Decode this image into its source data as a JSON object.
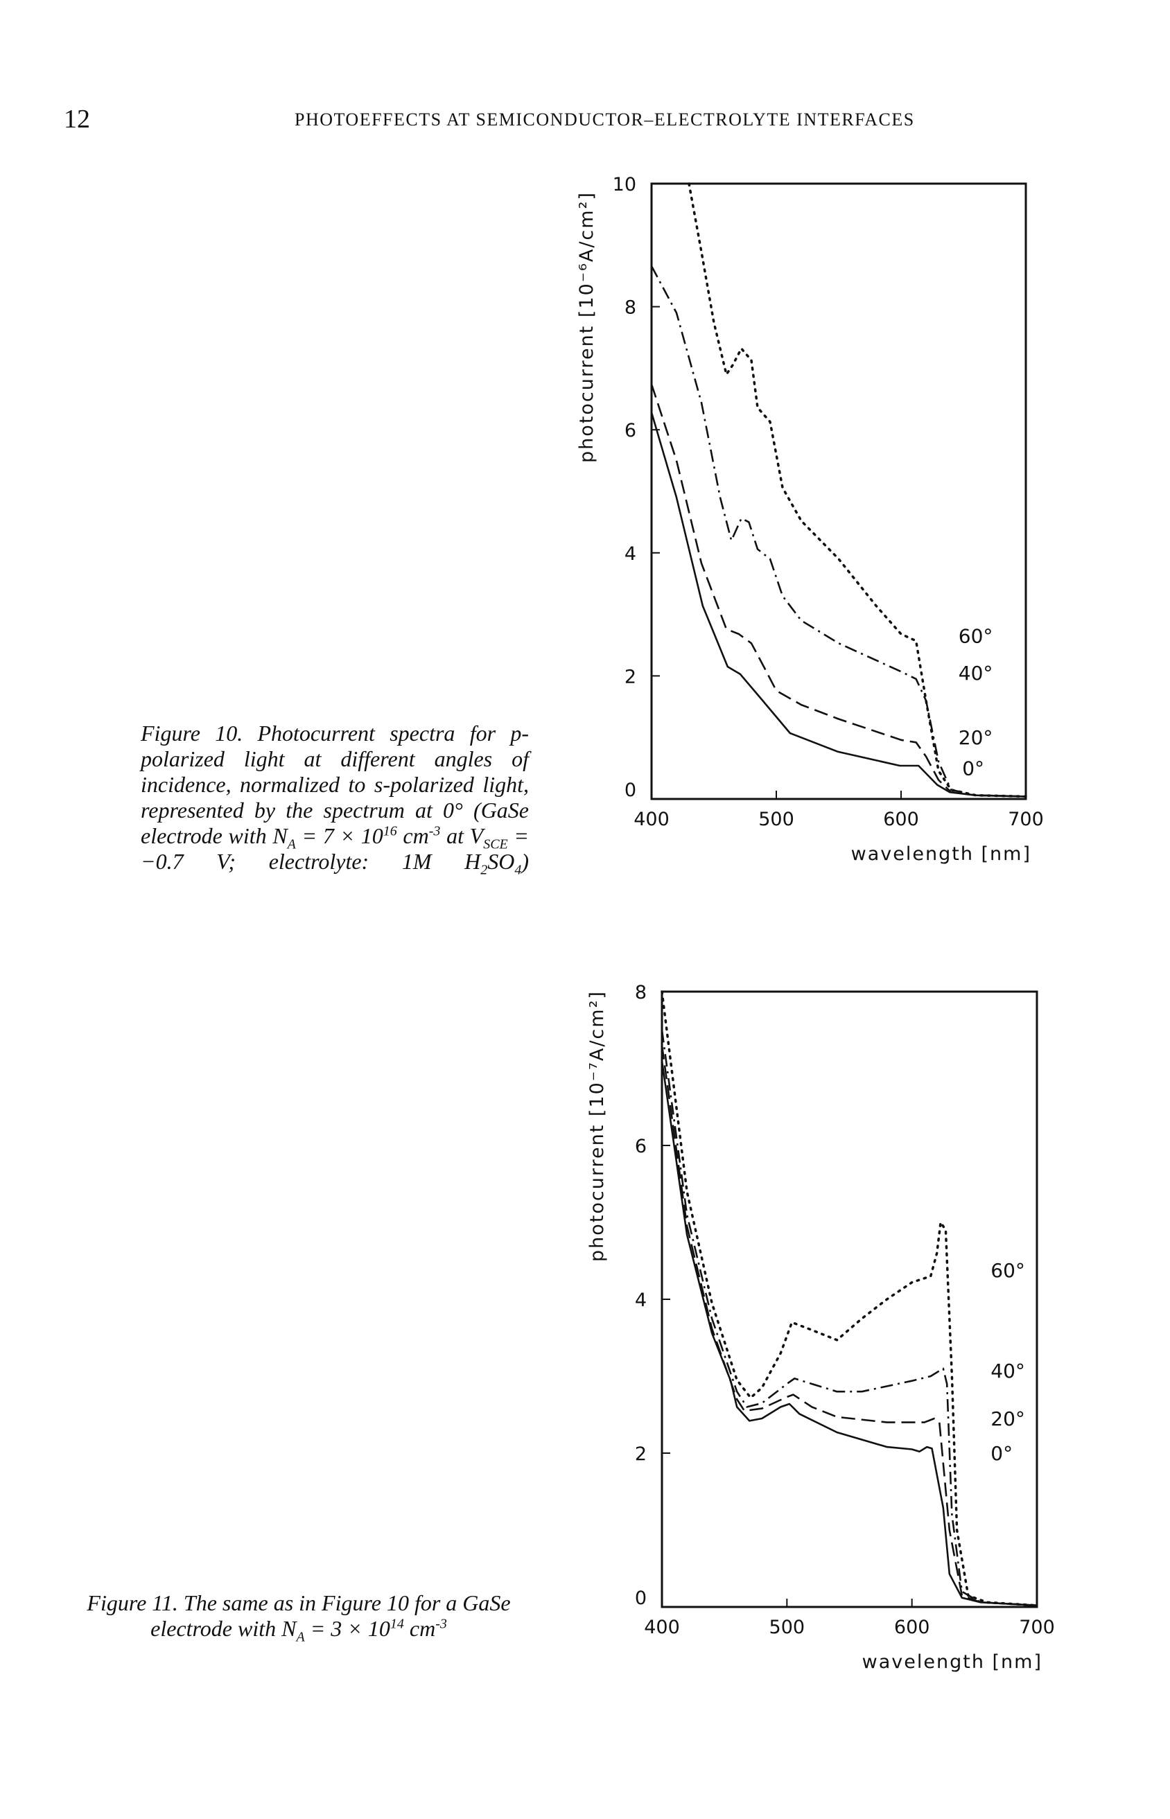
{
  "header": {
    "page_number": "12",
    "running_title": "PHOTOEFFECTS AT SEMICONDUCTOR–ELECTROLYTE INTERFACES"
  },
  "figure10": {
    "caption": [
      {
        "t": "Figure 10.  Photocurrent spectra for p-polarized light at different angles of incidence, normalized to s-polarized light, represented by the spectrum at 0° (GaSe electrode with N"
      },
      {
        "sub": "A"
      },
      {
        "t": " = 7 × 10"
      },
      {
        "sup": "16"
      },
      {
        "t": " cm"
      },
      {
        "sup": "-3"
      },
      {
        "t": " at V"
      },
      {
        "sub": "SCE"
      },
      {
        "t": " = −0.7 V; electrolyte: 1M H"
      },
      {
        "sub": "2"
      },
      {
        "t": "SO"
      },
      {
        "sub": "4"
      },
      {
        "t": ")"
      }
    ]
  },
  "figure11": {
    "caption": [
      {
        "t": "Figure 11.  The same as in Figure 10 for a GaSe electrode with N"
      },
      {
        "sub": "A"
      },
      {
        "t": " = 3 × 10"
      },
      {
        "sup": "14"
      },
      {
        "t": " cm"
      },
      {
        "sup": "-3"
      }
    ]
  },
  "chart_data": [
    {
      "type": "line",
      "xlabel": "wavelength  [nm]",
      "ylabel": "photocurrent  [10⁻⁶A/cm²]",
      "xlim": [
        400,
        700
      ],
      "ylim": [
        0,
        10
      ],
      "xticks": [
        400,
        500,
        600,
        700
      ],
      "yticks": [
        0,
        2,
        4,
        6,
        8,
        10
      ],
      "grid": false,
      "series": [
        {
          "name": "0°",
          "style": "solid",
          "x": [
            400,
            420,
            441,
            461,
            471,
            489,
            511,
            549,
            599,
            614,
            629,
            639,
            660,
            700
          ],
          "y": [
            6.28,
            4.9,
            3.14,
            2.15,
            2.03,
            1.6,
            1.07,
            0.77,
            0.54,
            0.54,
            0.23,
            0.11,
            0.06,
            0.04
          ]
        },
        {
          "name": "20°",
          "style": "dashed",
          "x": [
            400,
            420,
            440,
            460,
            470,
            480,
            490,
            500,
            520,
            550,
            600,
            612,
            620,
            630,
            640,
            660,
            700
          ],
          "y": [
            6.74,
            5.5,
            3.83,
            2.76,
            2.68,
            2.53,
            2.15,
            1.76,
            1.53,
            1.3,
            0.96,
            0.92,
            0.69,
            0.31,
            0.11,
            0.06,
            0.04
          ]
        },
        {
          "name": "40°",
          "style": "dash-dot",
          "x": [
            400,
            420,
            440,
            455,
            464,
            472,
            478,
            485,
            495,
            505,
            520,
            550,
            600,
            612,
            620,
            630,
            640,
            660,
            700
          ],
          "y": [
            8.66,
            7.9,
            6.44,
            4.9,
            4.2,
            4.56,
            4.5,
            4.06,
            3.9,
            3.3,
            2.9,
            2.53,
            2.07,
            1.95,
            1.6,
            0.61,
            0.15,
            0.06,
            0.04
          ]
        },
        {
          "name": "60°",
          "style": "dotted",
          "x": [
            430,
            440,
            450,
            460,
            465,
            472,
            480,
            485,
            495,
            505,
            520,
            550,
            580,
            600,
            612,
            620,
            630,
            640,
            660,
            700
          ],
          "y": [
            10,
            8.89,
            7.74,
            6.9,
            7.05,
            7.32,
            7.13,
            6.36,
            6.13,
            5.06,
            4.52,
            3.9,
            3.14,
            2.68,
            2.57,
            1.6,
            0.46,
            0.15,
            0.06,
            0.04
          ]
        }
      ]
    },
    {
      "type": "line",
      "xlabel": "wavelength  [nm]",
      "ylabel": "photocurrent  [10⁻⁷A/cm²]",
      "xlim": [
        400,
        700
      ],
      "ylim": [
        0,
        8
      ],
      "xticks": [
        400,
        500,
        600,
        700
      ],
      "yticks": [
        0,
        2,
        4,
        6,
        8
      ],
      "grid": false,
      "series": [
        {
          "name": "0°",
          "style": "solid",
          "x": [
            400,
            420,
            440,
            455,
            460,
            470,
            480,
            495,
            502,
            510,
            540,
            580,
            600,
            606,
            612,
            616,
            625,
            630,
            640,
            655,
            700
          ],
          "y": [
            7.1,
            4.84,
            3.56,
            2.94,
            2.6,
            2.42,
            2.45,
            2.6,
            2.64,
            2.51,
            2.27,
            2.08,
            2.05,
            2.02,
            2.08,
            2.06,
            1.29,
            0.43,
            0.12,
            0.06,
            0.02
          ]
        },
        {
          "name": "20°",
          "style": "dashed",
          "x": [
            400,
            420,
            440,
            460,
            466,
            480,
            500,
            505,
            520,
            540,
            580,
            610,
            618,
            622,
            630,
            640,
            655,
            700
          ],
          "y": [
            7.3,
            4.95,
            3.62,
            2.7,
            2.55,
            2.58,
            2.73,
            2.76,
            2.6,
            2.47,
            2.4,
            2.4,
            2.45,
            2.4,
            1.0,
            0.15,
            0.06,
            0.02
          ]
        },
        {
          "name": "40°",
          "style": "dash-dot",
          "x": [
            400,
            420,
            440,
            460,
            468,
            480,
            500,
            506,
            520,
            540,
            560,
            600,
            615,
            625,
            628,
            632,
            640,
            655,
            700
          ],
          "y": [
            7.5,
            5.1,
            3.75,
            2.8,
            2.6,
            2.65,
            2.9,
            2.97,
            2.9,
            2.8,
            2.8,
            2.94,
            3.0,
            3.1,
            2.9,
            1.2,
            0.2,
            0.06,
            0.02
          ]
        },
        {
          "name": "60°",
          "style": "dotted",
          "x": [
            400,
            420,
            440,
            460,
            471,
            480,
            495,
            504,
            520,
            540,
            560,
            580,
            600,
            615,
            620,
            623,
            627,
            632,
            636,
            645,
            660,
            700
          ],
          "y": [
            8.0,
            5.4,
            3.95,
            2.95,
            2.72,
            2.85,
            3.3,
            3.7,
            3.6,
            3.47,
            3.75,
            4.0,
            4.22,
            4.3,
            4.6,
            5.0,
            4.9,
            3.0,
            1.0,
            0.15,
            0.06,
            0.02
          ]
        }
      ]
    }
  ]
}
